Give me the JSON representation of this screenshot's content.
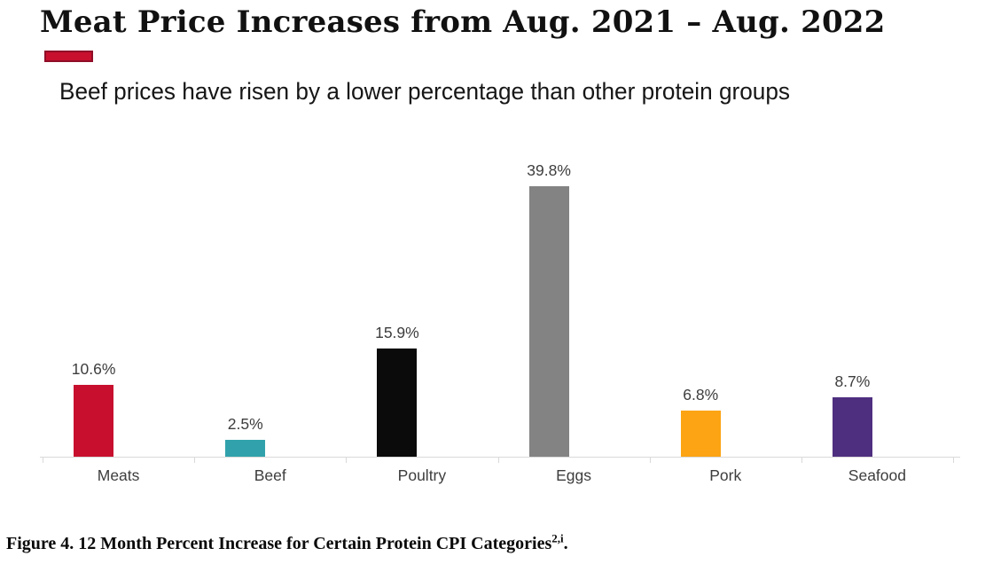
{
  "header": {
    "title": "Meat Price Increases from Aug. 2021 – Aug. 2022",
    "subtitle": "Beef prices have risen by a lower percentage than other protein groups",
    "accent_color": "#C8102E"
  },
  "chart_data": {
    "type": "bar",
    "title": "Meat Price Increases from Aug. 2021 – Aug. 2022",
    "subtitle": "Beef prices have risen by a lower percentage than other protein groups",
    "categories": [
      "Meats",
      "Beef",
      "Poultry",
      "Eggs",
      "Pork",
      "Seafood"
    ],
    "values": [
      10.6,
      2.5,
      15.9,
      39.8,
      6.8,
      8.7
    ],
    "value_labels": [
      "10.6%",
      "2.5%",
      "15.9%",
      "39.8%",
      "6.8%",
      "8.7%"
    ],
    "bar_colors": [
      "#C8102E",
      "#31A2AC",
      "#0b0b0b",
      "#838383",
      "#FCA414",
      "#4E2F7F"
    ],
    "xlabel": "",
    "ylabel": "",
    "ylim": [
      0,
      45
    ],
    "grid": false,
    "legend_position": "none",
    "axis_color": "#d9d9d9",
    "label_color": "#3d3d3d"
  },
  "caption": {
    "prefix": "Figure 4. 12 Month Percent Increase for Certain Protein CPI Categories",
    "superscript": "2,i",
    "suffix": "."
  }
}
